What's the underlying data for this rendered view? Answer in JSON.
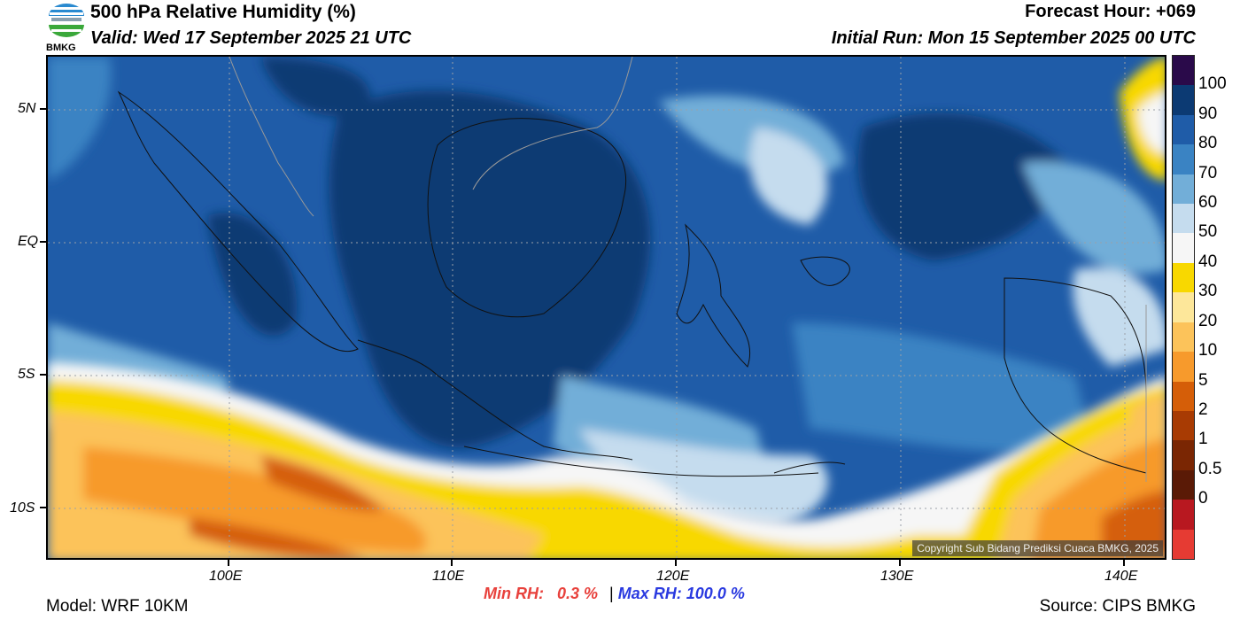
{
  "header": {
    "title": "500 hPa Relative Humidity (%)",
    "valid": "Valid: Wed 17 September 2025 21 UTC",
    "forecast_hour": "Forecast Hour: +069",
    "initial_run": "Initial Run: Mon 15 September 2025 00 UTC",
    "logo_text": "BMKG"
  },
  "map": {
    "lat_labels": [
      "5N",
      "EQ",
      "5S",
      "10S"
    ],
    "lon_labels": [
      "100E",
      "110E",
      "120E",
      "130E",
      "140E"
    ],
    "copyright": "Copyright Sub Bidang Prediksi Cuaca BMKG, 2025"
  },
  "colorbar": {
    "labels": [
      "100",
      "90",
      "80",
      "70",
      "60",
      "50",
      "40",
      "30",
      "20",
      "10",
      "5",
      "2",
      "1",
      "0.5",
      "0"
    ],
    "colors": [
      "#2a0a4a",
      "#0c3a73",
      "#1f5ca8",
      "#3a83c3",
      "#72aed8",
      "#c5dcee",
      "#f6f6f6",
      "#f8d800",
      "#fde79a",
      "#fcc35a",
      "#f79a2c",
      "#d55e08",
      "#a83b03",
      "#7a2603",
      "#5a1a06",
      "#b81820",
      "#e63b33"
    ]
  },
  "stats": {
    "min_label": "Min RH:",
    "min_value": "0.3 %",
    "separator": "|",
    "max_label": "Max RH:",
    "max_value": "100.0 %",
    "min_color": "#e8413c",
    "max_color": "#2a3ae0"
  },
  "footer": {
    "model": "Model: WRF 10KM",
    "source": "Source: CIPS BMKG"
  }
}
